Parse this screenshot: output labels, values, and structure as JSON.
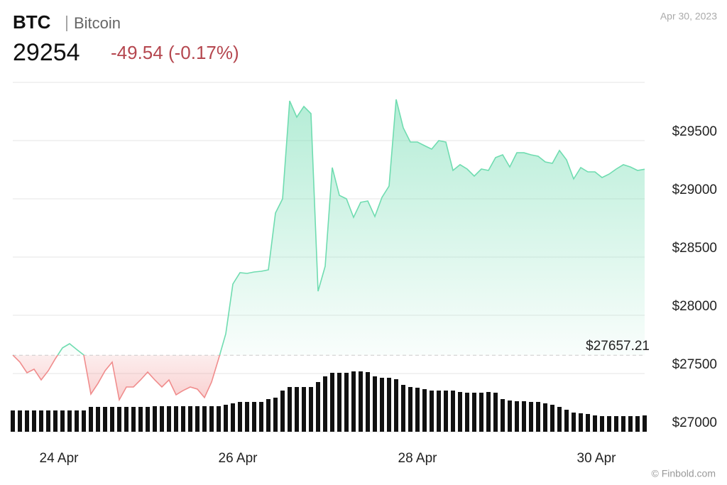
{
  "header": {
    "symbol": "BTC",
    "name": "Bitcoin",
    "date": "Apr 30, 2023"
  },
  "footer": {
    "credit": "© Finbold.com"
  },
  "chart_data": {
    "type": "line",
    "price": 29254,
    "change": {
      "value": -49.54,
      "label": "-49.54 (-0.17%)"
    },
    "baseline": {
      "value": 27657.21,
      "label": "$27657.21"
    },
    "up_color": "#6fdcb0",
    "down_color": "#f08c8c",
    "volume_color": "#111111",
    "xlim": [
      0,
      89
    ],
    "xticks": [
      {
        "value": 6.5,
        "label": "24 Apr"
      },
      {
        "value": 31.7,
        "label": "26 Apr"
      },
      {
        "value": 57,
        "label": "28 Apr"
      },
      {
        "value": 82.2,
        "label": "30 Apr"
      }
    ],
    "ylim": [
      27000,
      30000
    ],
    "yticks": [
      {
        "value": 27000,
        "label": "$27000"
      },
      {
        "value": 27500,
        "label": "$27500"
      },
      {
        "value": 28000,
        "label": "$28000"
      },
      {
        "value": 28500,
        "label": "$28500"
      },
      {
        "value": 29000,
        "label": "$29000"
      },
      {
        "value": 29500,
        "label": "$29500"
      }
    ],
    "grid": true,
    "values": [
      27659,
      27598,
      27506,
      27537,
      27445,
      27524,
      27628,
      27720,
      27756,
      27707,
      27659,
      27323,
      27415,
      27524,
      27598,
      27274,
      27384,
      27384,
      27445,
      27512,
      27445,
      27384,
      27445,
      27317,
      27354,
      27384,
      27366,
      27293,
      27427,
      27628,
      27841,
      28268,
      28366,
      28360,
      28372,
      28378,
      28390,
      28878,
      29000,
      29841,
      29701,
      29793,
      29732,
      28207,
      28421,
      29268,
      29030,
      29000,
      28841,
      28970,
      28982,
      28848,
      29012,
      29110,
      29854,
      29610,
      29488,
      29488,
      29457,
      29427,
      29500,
      29488,
      29244,
      29293,
      29256,
      29195,
      29256,
      29244,
      29354,
      29378,
      29274,
      29396,
      29396,
      29378,
      29366,
      29317,
      29305,
      29415,
      29335,
      29171,
      29268,
      29232,
      29232,
      29183,
      29213,
      29256,
      29293,
      29274,
      29244,
      29254
    ],
    "volume": {
      "ylim": [
        0,
        100
      ],
      "values": [
        30,
        30,
        30,
        30,
        30,
        30,
        30,
        30,
        30,
        30,
        30,
        35,
        35,
        35,
        35,
        35,
        35,
        35,
        35,
        35,
        36,
        36,
        36,
        36,
        36,
        36,
        36,
        36,
        36,
        36,
        38,
        40,
        42,
        42,
        42,
        42,
        46,
        48,
        58,
        63,
        63,
        63,
        63,
        70,
        78,
        83,
        83,
        83,
        85,
        85,
        84,
        78,
        76,
        76,
        74,
        66,
        63,
        62,
        60,
        58,
        58,
        58,
        58,
        56,
        55,
        55,
        55,
        56,
        55,
        46,
        44,
        43,
        43,
        42,
        42,
        40,
        38,
        35,
        31,
        27,
        26,
        25,
        23,
        22,
        22,
        22,
        22,
        22,
        22,
        23
      ]
    }
  }
}
